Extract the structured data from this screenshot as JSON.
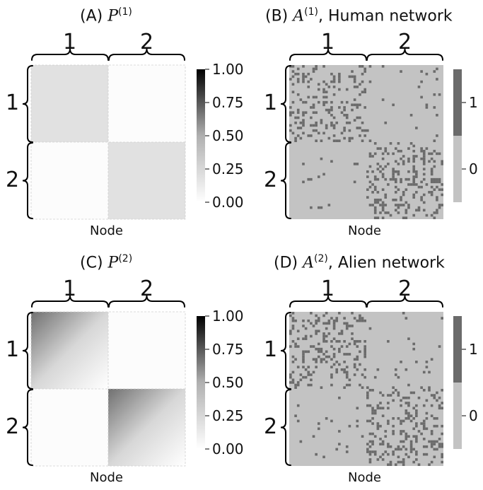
{
  "panels": {
    "a": {
      "title_prefix": "(A)",
      "title_symbol": "P",
      "title_sup": "(1)",
      "title_suffix": "",
      "xlabel": "Node"
    },
    "b": {
      "title_prefix": "(B)",
      "title_symbol": "A",
      "title_sup": "(1)",
      "title_suffix": ", Human network",
      "xlabel": "Node"
    },
    "c": {
      "title_prefix": "(C)",
      "title_symbol": "P",
      "title_sup": "(2)",
      "title_suffix": "",
      "xlabel": "Node"
    },
    "d": {
      "title_prefix": "(D)",
      "title_symbol": "A",
      "title_sup": "(2)",
      "title_suffix": ", Alien network",
      "xlabel": "Node"
    }
  },
  "block_labels": [
    "1",
    "2"
  ],
  "colorbar_continuous_ticks": [
    "1.00",
    "0.75",
    "0.50",
    "0.25",
    "0.00"
  ],
  "colorbar_binary_ticks": [
    "1",
    "0"
  ],
  "colors": {
    "edge": "#6b6b6b",
    "no_edge": "#c3c3c3",
    "grid": "#d0d0d0"
  },
  "chart_data": [
    {
      "type": "heatmap",
      "panel": "A",
      "rows": [
        "1",
        "2"
      ],
      "cols": [
        "1",
        "2"
      ],
      "values": [
        [
          0.15,
          0.01
        ],
        [
          0.01,
          0.15
        ]
      ],
      "zlim": [
        0,
        1
      ]
    },
    {
      "type": "heatmap",
      "panel": "B",
      "rows": [
        "1",
        "2"
      ],
      "cols": [
        "1",
        "2"
      ],
      "binary": true,
      "block_edge_density": [
        [
          0.22,
          0.02
        ],
        [
          0.02,
          0.22
        ]
      ],
      "zlim": [
        0,
        1
      ]
    },
    {
      "type": "heatmap",
      "panel": "C",
      "rows": [
        "1",
        "2"
      ],
      "cols": [
        "1",
        "2"
      ],
      "values_corner_max": [
        [
          0.55,
          0.02
        ],
        [
          0.02,
          0.55
        ]
      ],
      "values_corner_min": [
        [
          0.0,
          0.02
        ],
        [
          0.02,
          0.0
        ]
      ],
      "zlim": [
        0,
        1
      ]
    },
    {
      "type": "heatmap",
      "panel": "D",
      "rows": [
        "1",
        "2"
      ],
      "cols": [
        "1",
        "2"
      ],
      "binary": true,
      "block_edge_density": [
        [
          0.22,
          0.03
        ],
        [
          0.03,
          0.22
        ]
      ],
      "zlim": [
        0,
        1
      ]
    }
  ]
}
